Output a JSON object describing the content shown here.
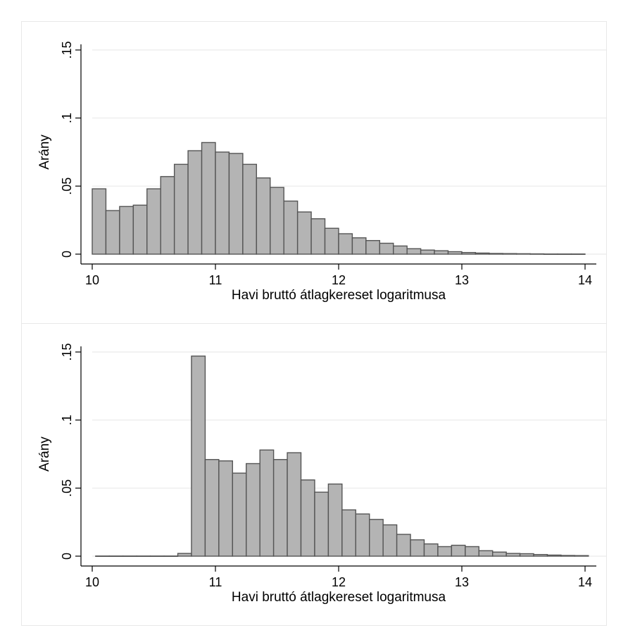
{
  "chart_data": [
    {
      "type": "bar",
      "ylabel": "Arány",
      "xlabel": "Havi bruttó átlagkereset logaritmusa",
      "xlim": [
        10,
        14
      ],
      "ylim": [
        0,
        0.15
      ],
      "xticks": [
        "10",
        "11",
        "12",
        "13",
        "14"
      ],
      "yticks": [
        "0",
        ".05",
        ".1",
        ".15"
      ],
      "grid": true,
      "bar_fill": "#b4b4b4",
      "bar_edge": "#555555",
      "bin_width": 0.1111,
      "bin_start": 10.0,
      "values": [
        0.048,
        0.032,
        0.035,
        0.036,
        0.048,
        0.057,
        0.066,
        0.076,
        0.082,
        0.075,
        0.074,
        0.066,
        0.056,
        0.049,
        0.039,
        0.031,
        0.026,
        0.019,
        0.015,
        0.012,
        0.01,
        0.008,
        0.006,
        0.004,
        0.003,
        0.0025,
        0.0018,
        0.0012,
        0.0008,
        0.0005,
        0.0004,
        0.0003,
        0.0002,
        0.0001,
        0.0001,
        0.0001
      ]
    },
    {
      "type": "bar",
      "ylabel": "Arány",
      "xlabel": "Havi bruttó átlagkereset logaritmusa",
      "xlim": [
        10,
        14
      ],
      "ylim": [
        0,
        0.15
      ],
      "xticks": [
        "10",
        "11",
        "12",
        "13",
        "14"
      ],
      "yticks": [
        "0",
        ".05",
        ".1",
        ".15"
      ],
      "grid": true,
      "bar_fill": "#b4b4b4",
      "bar_edge": "#555555",
      "bin_width": 0.1111,
      "bin_start": 10.0278,
      "values": [
        0.0001,
        0.0001,
        0.0001,
        0.0001,
        0.0001,
        0.0001,
        0.002,
        0.147,
        0.071,
        0.07,
        0.061,
        0.068,
        0.078,
        0.071,
        0.076,
        0.056,
        0.047,
        0.053,
        0.034,
        0.031,
        0.027,
        0.023,
        0.016,
        0.012,
        0.009,
        0.007,
        0.008,
        0.007,
        0.004,
        0.003,
        0.002,
        0.0018,
        0.0012,
        0.0008,
        0.0005,
        0.0004
      ]
    }
  ]
}
